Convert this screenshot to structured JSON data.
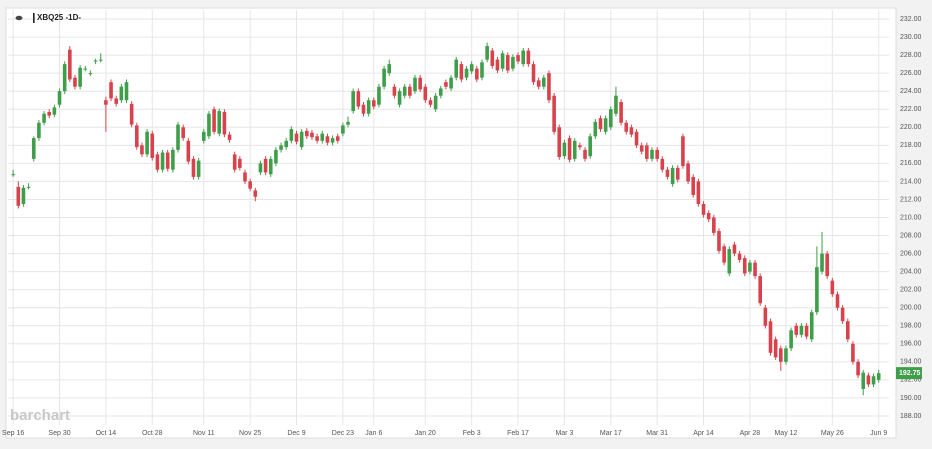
{
  "chart_data": {
    "type": "candlestick",
    "title": "XBQ25 -1D-",
    "watermark": "barchart",
    "up_color": "#3f9e4a",
    "down_color": "#d8424c",
    "grid": true,
    "ylim": [
      187,
      233
    ],
    "yticks": [
      {
        "value": 188,
        "label": "188.00"
      },
      {
        "value": 190,
        "label": "190.00"
      },
      {
        "value": 192,
        "label": "192.00"
      },
      {
        "value": 194,
        "label": "194.00"
      },
      {
        "value": 196,
        "label": "196.00"
      },
      {
        "value": 198,
        "label": "198.00"
      },
      {
        "value": 200,
        "label": "200.00"
      },
      {
        "value": 202,
        "label": "202.00"
      },
      {
        "value": 204,
        "label": "204.00"
      },
      {
        "value": 206,
        "label": "206.00"
      },
      {
        "value": 208,
        "label": "208.00"
      },
      {
        "value": 210,
        "label": "210.00"
      },
      {
        "value": 212,
        "label": "212.00"
      },
      {
        "value": 214,
        "label": "214.00"
      },
      {
        "value": 216,
        "label": "216.00"
      },
      {
        "value": 218,
        "label": "218.00"
      },
      {
        "value": 220,
        "label": "220.00"
      },
      {
        "value": 222,
        "label": "222.00"
      },
      {
        "value": 224,
        "label": "224.00"
      },
      {
        "value": 226,
        "label": "226.00"
      },
      {
        "value": 228,
        "label": "228.00"
      },
      {
        "value": 230,
        "label": "230.00"
      },
      {
        "value": 232,
        "label": "232.00"
      }
    ],
    "xlim": [
      -1,
      170
    ],
    "xticks": [
      {
        "value": 0,
        "label": "Sep 16"
      },
      {
        "value": 9,
        "label": "Sep 30"
      },
      {
        "value": 18,
        "label": "Oct 14"
      },
      {
        "value": 27,
        "label": "Oct 28"
      },
      {
        "value": 37,
        "label": "Nov 11"
      },
      {
        "value": 46,
        "label": "Nov 25"
      },
      {
        "value": 55,
        "label": "Dec 9"
      },
      {
        "value": 64,
        "label": "Dec 23"
      },
      {
        "value": 70,
        "label": "Jan 6"
      },
      {
        "value": 80,
        "label": "Jan 20"
      },
      {
        "value": 89,
        "label": "Feb 3"
      },
      {
        "value": 98,
        "label": "Feb 17"
      },
      {
        "value": 107,
        "label": "Mar 3"
      },
      {
        "value": 116,
        "label": "Mar 17"
      },
      {
        "value": 125,
        "label": "Mar 31"
      },
      {
        "value": 134,
        "label": "Apr 14"
      },
      {
        "value": 143,
        "label": "Apr 28"
      },
      {
        "value": 150,
        "label": "May 12"
      },
      {
        "value": 159,
        "label": "May 26"
      },
      {
        "value": 168,
        "label": "Jun 9"
      }
    ],
    "last_price": 192.75,
    "ohlc": [
      [
        214.8,
        215.3,
        214.5,
        214.8
      ],
      [
        213.4,
        214.0,
        211.0,
        211.3
      ],
      [
        211.5,
        213.6,
        211.2,
        213.3
      ],
      [
        213.4,
        213.8,
        213.1,
        213.4
      ],
      [
        216.5,
        219.0,
        216.2,
        218.8
      ],
      [
        218.8,
        220.8,
        218.5,
        220.5
      ],
      [
        220.5,
        221.8,
        220.2,
        221.5
      ],
      [
        221.7,
        222.0,
        221.0,
        221.3
      ],
      [
        221.4,
        222.5,
        221.1,
        222.2
      ],
      [
        222.5,
        224.3,
        222.2,
        224.0
      ],
      [
        224.0,
        227.3,
        223.7,
        227.0
      ],
      [
        228.6,
        229.0,
        225.0,
        225.3
      ],
      [
        225.5,
        225.8,
        224.2,
        224.5
      ],
      [
        224.5,
        226.9,
        224.2,
        226.6
      ],
      [
        226.5,
        226.8,
        226.2,
        226.5
      ],
      [
        226.0,
        226.3,
        225.7,
        226.0
      ],
      [
        227.3,
        227.6,
        227.0,
        227.4
      ],
      [
        227.5,
        228.2,
        227.2,
        227.5
      ],
      [
        223.0,
        223.4,
        219.5,
        222.5
      ],
      [
        225.0,
        225.3,
        222.9,
        223.2
      ],
      [
        223.2,
        223.5,
        222.3,
        222.6
      ],
      [
        223.0,
        224.8,
        222.7,
        224.5
      ],
      [
        223.0,
        225.3,
        222.7,
        225.0
      ],
      [
        222.6,
        222.9,
        220.0,
        220.3
      ],
      [
        220.2,
        220.5,
        217.5,
        217.8
      ],
      [
        218.0,
        218.3,
        216.7,
        217.0
      ],
      [
        217.0,
        219.8,
        216.7,
        219.5
      ],
      [
        219.3,
        219.6,
        216.3,
        216.6
      ],
      [
        217.0,
        217.3,
        215.0,
        215.3
      ],
      [
        215.3,
        217.5,
        215.0,
        217.2
      ],
      [
        217.2,
        217.5,
        215.1,
        215.4
      ],
      [
        215.3,
        217.8,
        215.0,
        217.5
      ],
      [
        217.5,
        220.6,
        217.2,
        220.3
      ],
      [
        220.0,
        220.3,
        218.5,
        218.8
      ],
      [
        218.5,
        218.8,
        215.9,
        216.2
      ],
      [
        216.5,
        216.8,
        214.2,
        214.5
      ],
      [
        214.5,
        216.6,
        214.2,
        216.3
      ],
      [
        218.5,
        219.8,
        218.2,
        219.5
      ],
      [
        219.0,
        221.8,
        218.7,
        221.5
      ],
      [
        222.0,
        222.3,
        219.2,
        219.5
      ],
      [
        219.3,
        222.1,
        219.0,
        221.8
      ],
      [
        221.7,
        222.0,
        218.9,
        219.2
      ],
      [
        219.2,
        219.5,
        218.3,
        218.6
      ],
      [
        217.0,
        217.3,
        215.0,
        215.3
      ],
      [
        216.5,
        216.8,
        215.2,
        215.5
      ],
      [
        215.0,
        215.3,
        213.7,
        214.0
      ],
      [
        214.0,
        214.3,
        212.9,
        213.2
      ],
      [
        213.0,
        213.3,
        211.8,
        212.3
      ],
      [
        215.0,
        216.3,
        214.7,
        216.0
      ],
      [
        216.5,
        216.8,
        214.7,
        215.0
      ],
      [
        214.8,
        216.8,
        214.5,
        216.5
      ],
      [
        216.0,
        217.8,
        215.7,
        217.5
      ],
      [
        217.5,
        218.3,
        217.2,
        218.0
      ],
      [
        217.8,
        218.8,
        217.5,
        218.5
      ],
      [
        218.5,
        220.1,
        218.2,
        219.8
      ],
      [
        219.3,
        219.6,
        218.1,
        218.4
      ],
      [
        217.8,
        219.8,
        217.5,
        219.5
      ],
      [
        219.6,
        219.9,
        218.7,
        219.0
      ],
      [
        219.4,
        219.7,
        218.6,
        218.9
      ],
      [
        219.0,
        219.3,
        218.2,
        218.5
      ],
      [
        218.5,
        219.6,
        218.2,
        219.3
      ],
      [
        219.0,
        219.3,
        218.0,
        218.3
      ],
      [
        218.3,
        219.1,
        218.0,
        218.8
      ],
      [
        219.0,
        219.3,
        218.2,
        218.5
      ],
      [
        219.3,
        220.5,
        219.0,
        220.2
      ],
      [
        220.3,
        221.2,
        220.0,
        220.6
      ],
      [
        221.8,
        224.3,
        221.5,
        224.0
      ],
      [
        224.0,
        224.3,
        222.0,
        222.3
      ],
      [
        222.5,
        222.8,
        221.2,
        221.5
      ],
      [
        221.5,
        223.3,
        221.2,
        223.0
      ],
      [
        223.0,
        223.3,
        222.0,
        222.3
      ],
      [
        222.5,
        224.8,
        222.2,
        224.5
      ],
      [
        224.5,
        226.8,
        224.2,
        226.5
      ],
      [
        226.0,
        227.5,
        225.7,
        227.0
      ],
      [
        224.5,
        224.8,
        223.2,
        223.5
      ],
      [
        222.5,
        224.3,
        222.2,
        224.0
      ],
      [
        223.5,
        224.8,
        223.2,
        224.5
      ],
      [
        224.5,
        224.8,
        223.2,
        223.5
      ],
      [
        224.0,
        225.8,
        223.7,
        225.5
      ],
      [
        225.5,
        225.8,
        223.9,
        224.2
      ],
      [
        224.5,
        224.8,
        222.7,
        223.0
      ],
      [
        223.0,
        223.3,
        222.2,
        222.5
      ],
      [
        222.0,
        223.8,
        221.7,
        223.5
      ],
      [
        223.5,
        224.6,
        223.2,
        224.3
      ],
      [
        225.0,
        225.3,
        224.2,
        224.5
      ],
      [
        224.3,
        225.8,
        224.0,
        225.5
      ],
      [
        225.5,
        227.8,
        225.2,
        227.5
      ],
      [
        227.0,
        227.3,
        225.0,
        225.3
      ],
      [
        225.5,
        226.8,
        225.2,
        226.5
      ],
      [
        226.2,
        227.3,
        225.9,
        227.0
      ],
      [
        226.5,
        226.8,
        225.0,
        225.3
      ],
      [
        225.5,
        227.5,
        225.2,
        227.2
      ],
      [
        227.5,
        229.4,
        227.2,
        229.0
      ],
      [
        228.5,
        228.8,
        226.5,
        226.8
      ],
      [
        227.5,
        227.8,
        226.0,
        226.3
      ],
      [
        226.5,
        228.5,
        226.2,
        228.2
      ],
      [
        228.0,
        228.3,
        226.0,
        226.3
      ],
      [
        226.5,
        228.1,
        226.2,
        227.8
      ],
      [
        228.0,
        228.3,
        227.0,
        227.3
      ],
      [
        227.0,
        228.8,
        226.7,
        228.5
      ],
      [
        228.5,
        228.8,
        226.7,
        227.0
      ],
      [
        227.0,
        227.3,
        224.7,
        225.0
      ],
      [
        225.2,
        225.5,
        224.2,
        224.5
      ],
      [
        224.5,
        225.8,
        224.2,
        225.5
      ],
      [
        226.0,
        226.3,
        222.7,
        223.0
      ],
      [
        223.5,
        223.8,
        219.2,
        219.5
      ],
      [
        220.0,
        220.3,
        216.4,
        216.7
      ],
      [
        216.8,
        218.6,
        216.5,
        218.3
      ],
      [
        218.8,
        219.1,
        216.1,
        216.4
      ],
      [
        216.5,
        218.8,
        216.2,
        218.5
      ],
      [
        218.0,
        218.3,
        217.5,
        217.8
      ],
      [
        217.5,
        217.8,
        216.2,
        216.5
      ],
      [
        216.8,
        219.3,
        216.5,
        219.0
      ],
      [
        219.0,
        220.9,
        218.7,
        220.6
      ],
      [
        221.0,
        221.3,
        219.5,
        219.8
      ],
      [
        219.5,
        221.3,
        219.2,
        221.0
      ],
      [
        220.0,
        222.3,
        219.7,
        222.0
      ],
      [
        221.5,
        224.5,
        221.2,
        223.5
      ],
      [
        222.8,
        223.1,
        220.2,
        220.5
      ],
      [
        220.5,
        220.8,
        219.2,
        219.5
      ],
      [
        220.0,
        220.3,
        218.9,
        219.2
      ],
      [
        219.5,
        219.8,
        217.7,
        218.0
      ],
      [
        218.0,
        218.3,
        217.0,
        217.3
      ],
      [
        218.0,
        218.3,
        216.2,
        216.5
      ],
      [
        216.5,
        217.8,
        216.2,
        217.5
      ],
      [
        217.5,
        217.8,
        216.2,
        216.5
      ],
      [
        216.5,
        216.8,
        215.0,
        215.3
      ],
      [
        215.3,
        215.6,
        214.2,
        214.5
      ],
      [
        213.7,
        215.8,
        213.4,
        215.5
      ],
      [
        215.5,
        215.8,
        213.9,
        214.2
      ],
      [
        219.0,
        219.3,
        215.4,
        215.7
      ],
      [
        216.0,
        216.3,
        213.7,
        214.0
      ],
      [
        214.5,
        214.8,
        212.2,
        212.5
      ],
      [
        214.0,
        214.3,
        211.2,
        211.5
      ],
      [
        211.5,
        211.8,
        210.0,
        210.3
      ],
      [
        210.5,
        210.8,
        209.5,
        209.8
      ],
      [
        210.0,
        210.3,
        208.0,
        208.3
      ],
      [
        208.5,
        208.8,
        206.0,
        206.3
      ],
      [
        206.8,
        207.1,
        204.7,
        205.0
      ],
      [
        203.8,
        206.8,
        203.5,
        206.5
      ],
      [
        207.0,
        207.3,
        205.7,
        206.0
      ],
      [
        206.0,
        206.3,
        205.0,
        205.3
      ],
      [
        205.5,
        205.8,
        203.5,
        203.8
      ],
      [
        204.0,
        205.3,
        203.7,
        205.0
      ],
      [
        205.0,
        205.3,
        203.2,
        203.5
      ],
      [
        203.5,
        203.8,
        200.2,
        200.5
      ],
      [
        200.0,
        200.3,
        197.7,
        198.0
      ],
      [
        198.5,
        198.8,
        194.7,
        195.0
      ],
      [
        196.5,
        196.8,
        194.2,
        194.5
      ],
      [
        195.5,
        195.8,
        193.0,
        194.0
      ],
      [
        194.0,
        195.8,
        193.7,
        195.5
      ],
      [
        195.5,
        197.8,
        195.2,
        197.5
      ],
      [
        198.0,
        198.3,
        196.7,
        197.0
      ],
      [
        197.0,
        198.3,
        196.7,
        198.0
      ],
      [
        198.0,
        198.3,
        196.5,
        196.8
      ],
      [
        196.5,
        199.8,
        196.2,
        199.5
      ],
      [
        199.5,
        206.8,
        199.2,
        204.5
      ],
      [
        204.0,
        208.4,
        203.7,
        206.0
      ],
      [
        206.0,
        206.3,
        203.2,
        203.5
      ],
      [
        203.0,
        203.3,
        201.2,
        201.5
      ],
      [
        201.5,
        201.8,
        199.7,
        200.0
      ],
      [
        200.0,
        200.3,
        198.2,
        198.5
      ],
      [
        198.5,
        198.8,
        196.2,
        196.5
      ],
      [
        196.0,
        196.3,
        193.7,
        194.0
      ],
      [
        194.0,
        194.3,
        192.2,
        192.5
      ],
      [
        191.0,
        193.1,
        190.3,
        192.8
      ],
      [
        192.5,
        192.8,
        191.2,
        191.5
      ],
      [
        191.5,
        192.7,
        191.2,
        192.4
      ],
      [
        192.0,
        193.1,
        191.7,
        192.75
      ]
    ]
  }
}
